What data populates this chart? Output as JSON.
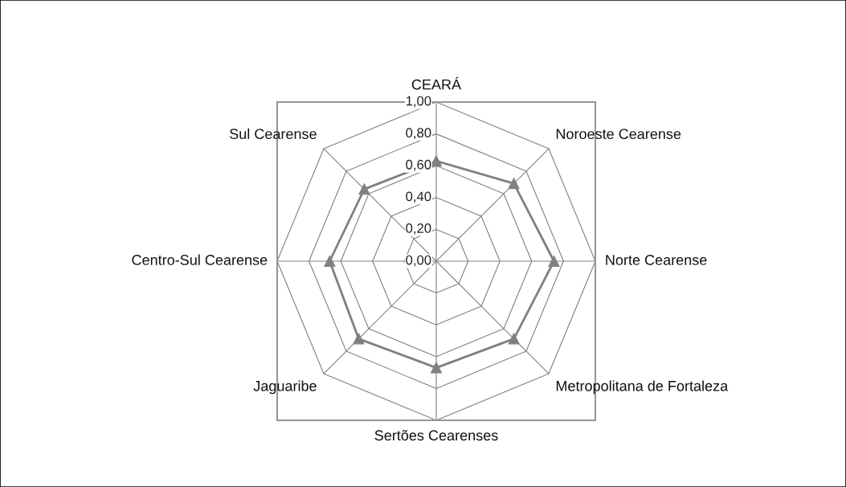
{
  "chart_data": {
    "type": "radar",
    "categories": [
      "CEARÁ",
      "Noroeste Cearense",
      "Norte Cearense",
      "Metropolitana de Fortaleza",
      "Sertões Cearenses",
      "Jaguaribe",
      "Centro-Sul Cearense",
      "Sul Cearense"
    ],
    "series": [
      {
        "color": "#808080",
        "values": [
          0.63,
          0.69,
          0.74,
          0.69,
          0.67,
          0.69,
          0.67,
          0.64
        ]
      }
    ],
    "ylim": [
      0,
      1
    ],
    "yticks": [
      {
        "value": 0,
        "label": "0,00"
      },
      {
        "value": 0.2,
        "label": "0,20"
      },
      {
        "value": 0.4,
        "label": "0,40"
      },
      {
        "value": 0.6,
        "label": "0,60"
      },
      {
        "value": 0.8,
        "label": "0,80"
      },
      {
        "value": 1,
        "label": "1,00"
      }
    ],
    "grid": true,
    "marker": "triangle",
    "line_style": "solid"
  }
}
